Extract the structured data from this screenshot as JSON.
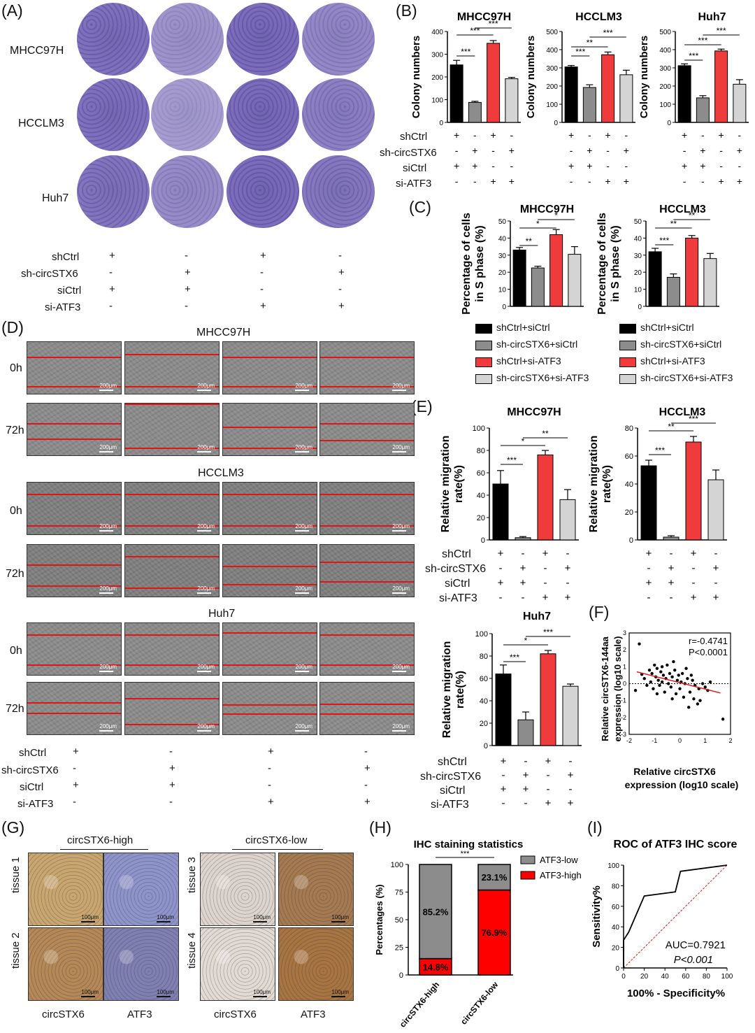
{
  "panels": {
    "A": "(A)",
    "B": "(B)",
    "C": "(C)",
    "D": "(D)",
    "E": "(E)",
    "F": "(F)",
    "G": "(G)",
    "H": "(H)",
    "I": "(I)"
  },
  "conditions": {
    "shCtrl": "shCtrl",
    "sh_circ": "sh-circSTX6",
    "siCtrl": "siCtrl",
    "siATF3": "si-ATF3",
    "shCtrl_row": [
      "+",
      "-",
      "+",
      "-"
    ],
    "sh_circ_row": [
      "-",
      "+",
      "-",
      "+"
    ],
    "siCtrl_row": [
      "+",
      "+",
      "-",
      "-"
    ],
    "siATF3_row": [
      "-",
      "-",
      "+",
      "+"
    ]
  },
  "panelA": {
    "rows": [
      "MHCC97H",
      "HCCLM3",
      "Huh7"
    ]
  },
  "panelD": {
    "groups": [
      "MHCC97H",
      "HCCLM3",
      "Huh7"
    ],
    "times": [
      "0h",
      "72h"
    ],
    "scale": "200μm"
  },
  "panelG": {
    "high": "circSTX6-high",
    "low": "circSTX6-low",
    "tissues": [
      "tissue 1",
      "tissue 2",
      "tissue 3",
      "tissue 4"
    ],
    "cols": [
      "circSTX6",
      "ATF3"
    ],
    "scale": "100μm"
  },
  "legendC": [
    "shCtrl+siCtrl",
    "sh-circSTX6+siCtrl",
    "shCtrl+si-ATF3",
    "sh-circSTX6+si-ATF3"
  ],
  "colors": {
    "black": "#000000",
    "gray": "#8c8c8c",
    "red": "#ef3b3b",
    "lightgray": "#d4d4d4",
    "crystal": "#4a3a9a"
  },
  "chart_data": [
    {
      "id": "B1",
      "type": "bar",
      "title": "MHCC97H",
      "ylabel": "Colony numbers",
      "ylim": [
        0,
        400
      ],
      "yticks": [
        0,
        100,
        200,
        300,
        400
      ],
      "values": [
        253,
        88,
        348,
        192
      ],
      "errors": [
        20,
        5,
        12,
        6
      ],
      "sig": [
        "***",
        "***",
        "***"
      ]
    },
    {
      "id": "B2",
      "type": "bar",
      "title": "HCCLM3",
      "ylabel": "Colony numbers",
      "ylim": [
        0,
        500
      ],
      "yticks": [
        0,
        100,
        200,
        300,
        400,
        500
      ],
      "values": [
        305,
        192,
        372,
        262
      ],
      "errors": [
        8,
        15,
        15,
        25
      ],
      "sig": [
        "***",
        "**",
        "***"
      ]
    },
    {
      "id": "B3",
      "type": "bar",
      "title": "Huh7",
      "ylabel": "Colony numbers",
      "ylim": [
        0,
        500
      ],
      "yticks": [
        0,
        100,
        200,
        300,
        400,
        500
      ],
      "values": [
        312,
        135,
        393,
        210
      ],
      "errors": [
        10,
        12,
        10,
        25
      ],
      "sig": [
        "***",
        "***",
        "***"
      ]
    },
    {
      "id": "C1",
      "type": "bar",
      "title": "MHCC97H",
      "ylabel": "Percentage of cells in S phase (%)",
      "ylim": [
        0,
        50
      ],
      "yticks": [
        0,
        10,
        20,
        30,
        40,
        50
      ],
      "values": [
        33,
        22.5,
        42,
        30.5
      ],
      "errors": [
        1.5,
        1,
        3,
        4.5
      ],
      "sig": [
        "**",
        "*",
        "*"
      ]
    },
    {
      "id": "C2",
      "type": "bar",
      "title": "HCCLM3",
      "ylabel": "Percentage of cells in S phase (%)",
      "ylim": [
        0,
        50
      ],
      "yticks": [
        0,
        10,
        20,
        30,
        40,
        50
      ],
      "values": [
        32,
        17,
        40,
        28
      ],
      "errors": [
        2,
        2,
        1.5,
        3
      ],
      "sig": [
        "***",
        "**",
        "**"
      ]
    },
    {
      "id": "E1",
      "type": "bar",
      "title": "MHCC97H",
      "ylabel": "Relative migration rate(%)",
      "ylim": [
        0,
        100
      ],
      "yticks": [
        0,
        20,
        40,
        60,
        80,
        100
      ],
      "values": [
        50,
        2,
        76,
        36
      ],
      "errors": [
        12,
        1,
        4,
        9
      ],
      "sig": [
        "***",
        "*",
        "**"
      ]
    },
    {
      "id": "E2",
      "type": "bar",
      "title": "HCCLM3",
      "ylabel": "Relative migration rate(%)",
      "ylim": [
        0,
        80
      ],
      "yticks": [
        0,
        20,
        40,
        60,
        80
      ],
      "values": [
        53,
        2,
        70,
        43
      ],
      "errors": [
        4,
        1,
        4,
        7
      ],
      "sig": [
        "***",
        "**",
        "***"
      ]
    },
    {
      "id": "E3",
      "type": "bar",
      "title": "Huh7",
      "ylabel": "Relative migration rate(%)",
      "ylim": [
        0,
        100
      ],
      "yticks": [
        0,
        20,
        40,
        60,
        80,
        100
      ],
      "values": [
        64,
        23,
        82,
        53
      ],
      "errors": [
        8,
        7,
        3,
        2
      ],
      "sig": [
        "***",
        "*",
        "***"
      ]
    },
    {
      "id": "F",
      "type": "scatter",
      "xlabel": "Relative circSTX6 expression (log10 scale)",
      "ylabel": "Relative circSTX6-144aa expression (log10 scale)",
      "xlim": [
        -2,
        2
      ],
      "ylim": [
        -3,
        3
      ],
      "xticks": [
        -2,
        -1,
        0,
        1,
        2
      ],
      "yticks": [
        -3,
        -2,
        -1,
        0,
        1,
        2,
        3
      ],
      "stat_r": "r=-0.4741",
      "stat_p": "P<0.0001",
      "fit": [
        [
          -1.7,
          0.7
        ],
        [
          1.6,
          -0.55
        ]
      ],
      "points": [
        [
          -1.75,
          -0.4
        ],
        [
          -1.6,
          2.35
        ],
        [
          -1.5,
          0.55
        ],
        [
          -1.4,
          0.3
        ],
        [
          -1.3,
          -0.1
        ],
        [
          -1.2,
          0.8
        ],
        [
          -1.15,
          0.1
        ],
        [
          -1.1,
          0.6
        ],
        [
          -1.05,
          -0.3
        ],
        [
          -1.0,
          1.1
        ],
        [
          -0.95,
          0.4
        ],
        [
          -0.9,
          0.9
        ],
        [
          -0.85,
          0.2
        ],
        [
          -0.8,
          -0.1
        ],
        [
          -0.75,
          0.7
        ],
        [
          -0.7,
          1.0
        ],
        [
          -0.65,
          0.5
        ],
        [
          -0.6,
          -0.5
        ],
        [
          -0.55,
          0.3
        ],
        [
          -0.5,
          1.1
        ],
        [
          -0.45,
          0.0
        ],
        [
          -0.4,
          0.6
        ],
        [
          -0.35,
          -0.2
        ],
        [
          -0.3,
          0.4
        ],
        [
          -0.25,
          1.3
        ],
        [
          -0.2,
          0.8
        ],
        [
          -0.15,
          -0.6
        ],
        [
          -0.1,
          0.2
        ],
        [
          -0.05,
          0.5
        ],
        [
          0.0,
          -0.3
        ],
        [
          0.05,
          0.1
        ],
        [
          0.1,
          0.6
        ],
        [
          0.15,
          -0.8
        ],
        [
          0.2,
          0.0
        ],
        [
          0.3,
          0.3
        ],
        [
          0.35,
          -1.4
        ],
        [
          0.4,
          -0.5
        ],
        [
          0.5,
          0.2
        ],
        [
          0.55,
          -0.9
        ],
        [
          0.6,
          -0.1
        ],
        [
          0.7,
          -1.2
        ],
        [
          0.75,
          -0.3
        ],
        [
          0.8,
          -1.0
        ],
        [
          0.9,
          0.0
        ],
        [
          1.0,
          -0.2
        ],
        [
          1.1,
          -0.4
        ],
        [
          1.2,
          0.1
        ],
        [
          1.7,
          -2.1
        ],
        [
          -0.7,
          0.1
        ],
        [
          -0.3,
          -0.9
        ],
        [
          0.25,
          0.9
        ],
        [
          -0.9,
          -0.6
        ],
        [
          0.45,
          0.5
        ]
      ]
    },
    {
      "id": "H",
      "type": "bar",
      "stacked": true,
      "title": "IHC staining statistics",
      "ylabel": "Percentages (%)",
      "ylim": [
        0,
        100
      ],
      "yticks": [
        0,
        25,
        50,
        75,
        100
      ],
      "categories": [
        "circSTX6-high",
        "circSTX6-low"
      ],
      "series": [
        {
          "name": "ATF3-high",
          "values": [
            14.8,
            76.9
          ]
        },
        {
          "name": "ATF3-low",
          "values": [
            85.2,
            23.1
          ]
        }
      ],
      "labels_low": [
        "85.2%",
        "23.1%"
      ],
      "labels_high": [
        "14.8%",
        "76.9%"
      ],
      "sig": "***"
    },
    {
      "id": "I",
      "type": "line",
      "title": "ROC of ATF3 IHC score",
      "xlabel": "100% - Specificity%",
      "ylabel": "Sensitivity%",
      "xlim": [
        0,
        100
      ],
      "ylim": [
        0,
        100
      ],
      "xticks": [
        0,
        20,
        40,
        60,
        80,
        100
      ],
      "yticks": [
        0,
        20,
        40,
        60,
        80,
        100
      ],
      "auc": "AUC=0.7921",
      "p": "P<0.001",
      "points": [
        [
          0,
          0
        ],
        [
          0,
          27
        ],
        [
          5,
          35
        ],
        [
          20,
          70
        ],
        [
          50,
          74
        ],
        [
          55,
          94
        ],
        [
          100,
          100
        ]
      ]
    }
  ]
}
